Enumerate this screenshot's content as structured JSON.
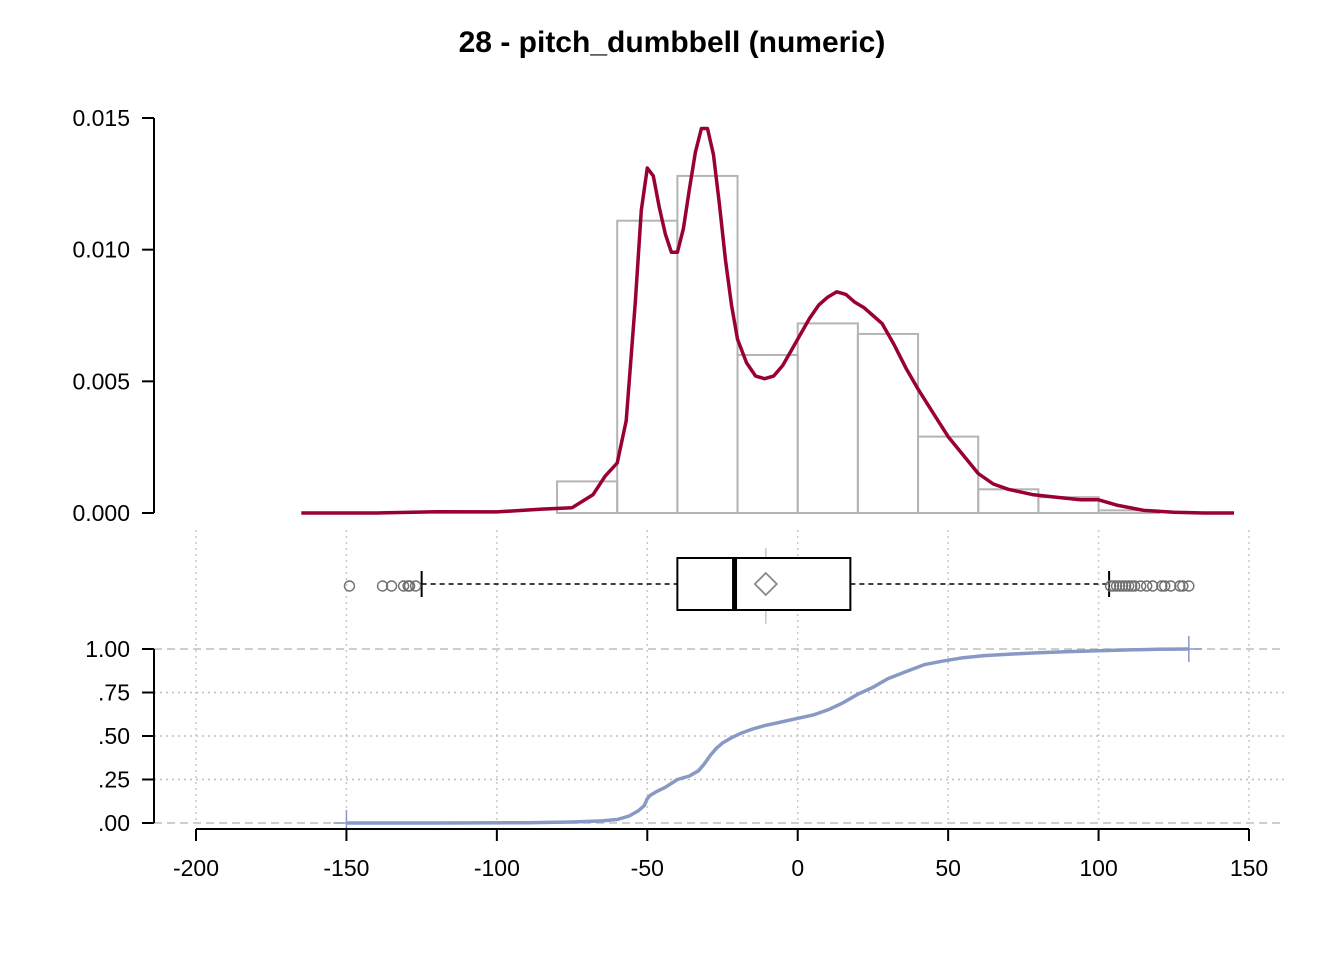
{
  "chart_data": [
    {
      "type": "histogram",
      "title": "28 - pitch_dumbbell (numeric)",
      "y_ticks": [
        "0.000",
        "0.005",
        "0.010",
        "0.015"
      ],
      "y_tick_values": [
        0,
        0.005,
        0.01,
        0.015
      ],
      "ylim": [
        0,
        0.015
      ],
      "bin_edges": [
        -80,
        -60,
        -40,
        -20,
        0,
        20,
        40,
        60,
        80,
        100,
        120
      ],
      "densities": [
        0.0012,
        0.0111,
        0.0128,
        0.006,
        0.0072,
        0.0068,
        0.0029,
        0.0009,
        0.0006,
        0.0001
      ],
      "colors": {
        "bars": "#b4b4b4",
        "density": "#990033"
      },
      "density_curve": {
        "x": [
          -165,
          -140,
          -120,
          -100,
          -85,
          -75,
          -68,
          -64,
          -60,
          -57,
          -54,
          -52,
          -50,
          -48,
          -46,
          -44,
          -42,
          -40,
          -38,
          -36,
          -34,
          -32,
          -30,
          -28,
          -26,
          -24,
          -22,
          -20,
          -17,
          -14,
          -11,
          -8,
          -5,
          -2,
          1,
          4,
          7,
          10,
          13,
          16,
          19,
          22,
          25,
          28,
          32,
          36,
          40,
          45,
          50,
          55,
          60,
          65,
          70,
          78,
          86,
          94,
          100,
          106,
          115,
          125,
          135,
          145
        ],
        "y": [
          0,
          0,
          5e-05,
          4e-05,
          0.00015,
          0.0002,
          0.0007,
          0.0014,
          0.0019,
          0.0035,
          0.008,
          0.0115,
          0.0131,
          0.0128,
          0.0116,
          0.0106,
          0.0099,
          0.0099,
          0.0108,
          0.0123,
          0.0137,
          0.0146,
          0.0146,
          0.0136,
          0.0117,
          0.0096,
          0.0079,
          0.0066,
          0.0057,
          0.0052,
          0.0051,
          0.0052,
          0.0056,
          0.0062,
          0.0068,
          0.0074,
          0.0079,
          0.0082,
          0.0084,
          0.0083,
          0.008,
          0.0078,
          0.0075,
          0.0072,
          0.0064,
          0.0055,
          0.0047,
          0.0038,
          0.0029,
          0.0022,
          0.0015,
          0.0011,
          0.0009,
          0.0007,
          0.0006,
          0.0005,
          0.0005,
          0.0003,
          0.0001,
          3e-05,
          0,
          0
        ]
      }
    },
    {
      "type": "boxplot",
      "min_whisker": -125,
      "q1": -40,
      "median": -21,
      "mean": -10.6,
      "q3": 17.5,
      "max_whisker": 103.5,
      "outliers_low": [
        -149,
        -138,
        -135,
        -131,
        -129.5,
        -129,
        -127
      ],
      "outliers_high": [
        104,
        105,
        106,
        107,
        108,
        109,
        110,
        111,
        112,
        114,
        116,
        118,
        121,
        122,
        124,
        127,
        128,
        130
      ]
    },
    {
      "type": "line",
      "y_ticks": [
        "1.00",
        ".75",
        ".50",
        ".25",
        ".00"
      ],
      "y_tick_values": [
        1,
        0.75,
        0.5,
        0.25,
        0
      ],
      "ylim": [
        0,
        1
      ],
      "grid": true,
      "color": "#8899c6",
      "ecdf": {
        "x": [
          -150,
          -120,
          -90,
          -75,
          -65,
          -60,
          -56,
          -53,
          -51,
          -50,
          -49,
          -47,
          -44,
          -40,
          -36,
          -33,
          -31,
          -29,
          -27,
          -25,
          -22,
          -19,
          -15,
          -11,
          -7,
          -3,
          1,
          5,
          10,
          15,
          20,
          25,
          30,
          36,
          42,
          48,
          55,
          62,
          70,
          80,
          90,
          100,
          110,
          120,
          130
        ],
        "y": [
          0,
          0,
          0.002,
          0.006,
          0.012,
          0.02,
          0.04,
          0.07,
          0.1,
          0.14,
          0.16,
          0.18,
          0.205,
          0.25,
          0.27,
          0.3,
          0.34,
          0.39,
          0.43,
          0.46,
          0.49,
          0.515,
          0.54,
          0.56,
          0.575,
          0.59,
          0.605,
          0.62,
          0.65,
          0.69,
          0.74,
          0.78,
          0.83,
          0.87,
          0.91,
          0.93,
          0.95,
          0.962,
          0.97,
          0.978,
          0.985,
          0.99,
          0.995,
          0.998,
          1.0
        ]
      }
    }
  ],
  "x_axis": {
    "ticks": [
      "-200",
      "-150",
      "-100",
      "-50",
      "0",
      "50",
      "100",
      "150"
    ],
    "tick_values": [
      -200,
      -150,
      -100,
      -50,
      0,
      50,
      100,
      150
    ],
    "range": [
      -200,
      150
    ]
  }
}
